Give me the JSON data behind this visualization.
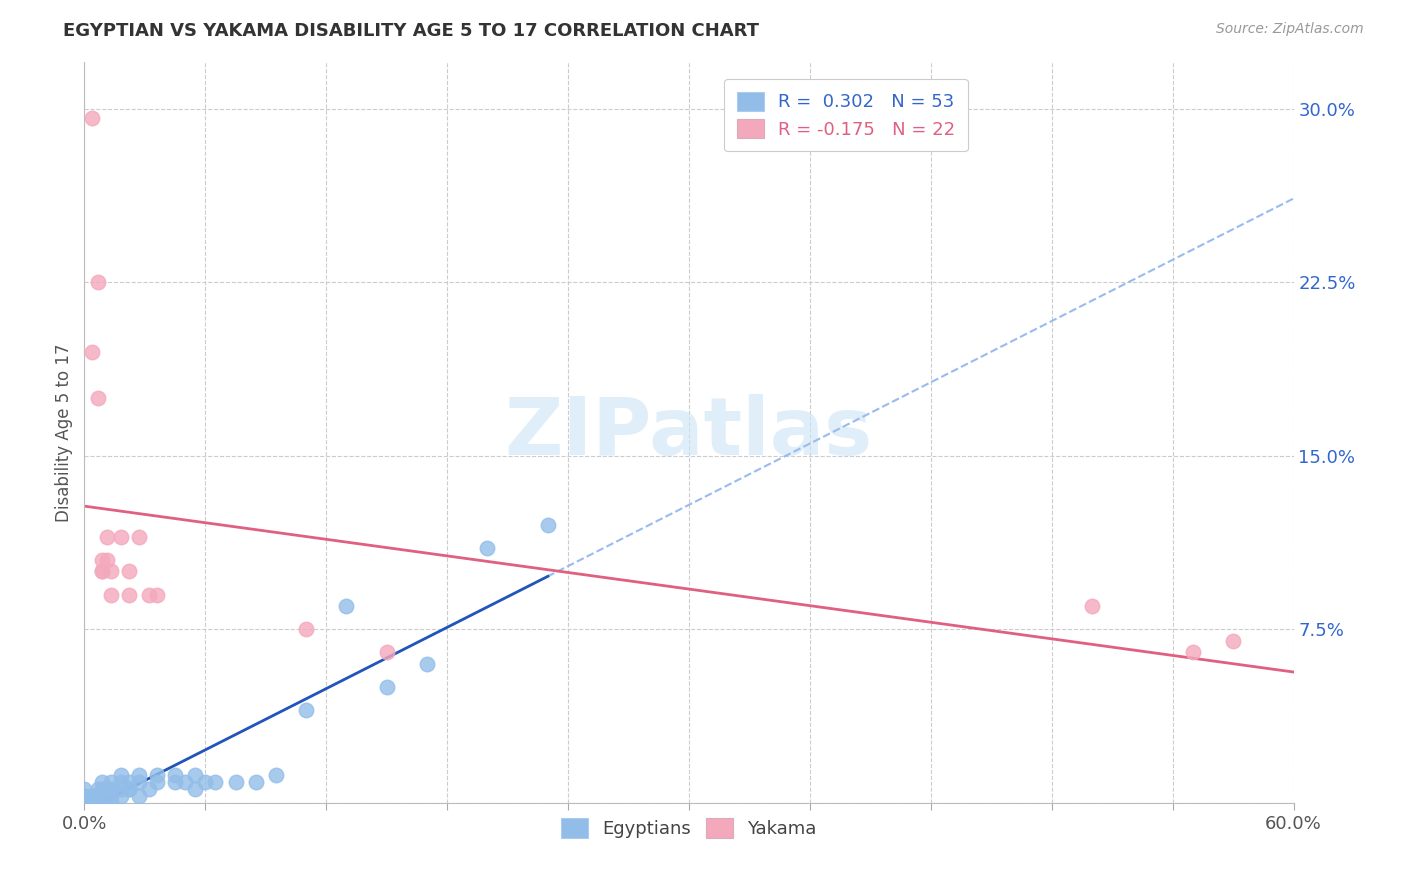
{
  "title": "EGYPTIAN VS YAKAMA DISABILITY AGE 5 TO 17 CORRELATION CHART",
  "source": "Source: ZipAtlas.com",
  "ylabel": "Disability Age 5 to 17",
  "xlim": [
    0.0,
    0.6
  ],
  "ylim": [
    0.0,
    0.32
  ],
  "xticks": [
    0.0,
    0.06,
    0.12,
    0.18,
    0.24,
    0.3,
    0.36,
    0.42,
    0.48,
    0.54,
    0.6
  ],
  "ytick_positions": [
    0.0,
    0.075,
    0.15,
    0.225,
    0.3
  ],
  "yticklabels": [
    "",
    "7.5%",
    "15.0%",
    "22.5%",
    "30.0%"
  ],
  "r_egyptian": 0.302,
  "n_egyptian": 53,
  "r_yakama": -0.175,
  "n_yakama": 22,
  "legend_labels": [
    "Egyptians",
    "Yakama"
  ],
  "egyptian_color": "#92bde8",
  "yakama_color": "#f4a8bc",
  "egyptian_line_color": "#2255bb",
  "yakama_line_color": "#e06080",
  "dash_line_color": "#99bbee",
  "background_color": "#ffffff",
  "egyptian_x": [
    0.0,
    0.0,
    0.0,
    0.0,
    0.0,
    0.0,
    0.004,
    0.004,
    0.004,
    0.004,
    0.007,
    0.007,
    0.007,
    0.009,
    0.009,
    0.009,
    0.009,
    0.009,
    0.011,
    0.011,
    0.013,
    0.013,
    0.013,
    0.013,
    0.018,
    0.018,
    0.018,
    0.018,
    0.022,
    0.022,
    0.022,
    0.027,
    0.027,
    0.027,
    0.032,
    0.036,
    0.036,
    0.045,
    0.045,
    0.05,
    0.055,
    0.055,
    0.06,
    0.065,
    0.075,
    0.085,
    0.095,
    0.11,
    0.13,
    0.15,
    0.17,
    0.2,
    0.23
  ],
  "egyptian_y": [
    0.0,
    0.0,
    0.0,
    0.003,
    0.003,
    0.006,
    0.0,
    0.0,
    0.003,
    0.003,
    0.0,
    0.003,
    0.006,
    0.0,
    0.0,
    0.003,
    0.006,
    0.009,
    0.003,
    0.006,
    0.0,
    0.003,
    0.006,
    0.009,
    0.003,
    0.006,
    0.009,
    0.012,
    0.006,
    0.006,
    0.009,
    0.003,
    0.009,
    0.012,
    0.006,
    0.009,
    0.012,
    0.009,
    0.012,
    0.009,
    0.006,
    0.012,
    0.009,
    0.009,
    0.009,
    0.009,
    0.012,
    0.04,
    0.085,
    0.05,
    0.06,
    0.11,
    0.12
  ],
  "yakama_x": [
    0.004,
    0.004,
    0.007,
    0.007,
    0.009,
    0.009,
    0.009,
    0.011,
    0.011,
    0.013,
    0.013,
    0.018,
    0.022,
    0.022,
    0.027,
    0.032,
    0.036,
    0.11,
    0.15,
    0.5,
    0.55,
    0.57
  ],
  "yakama_y": [
    0.296,
    0.195,
    0.225,
    0.175,
    0.105,
    0.1,
    0.1,
    0.115,
    0.105,
    0.1,
    0.09,
    0.115,
    0.1,
    0.09,
    0.115,
    0.09,
    0.09,
    0.075,
    0.065,
    0.085,
    0.065,
    0.07
  ]
}
